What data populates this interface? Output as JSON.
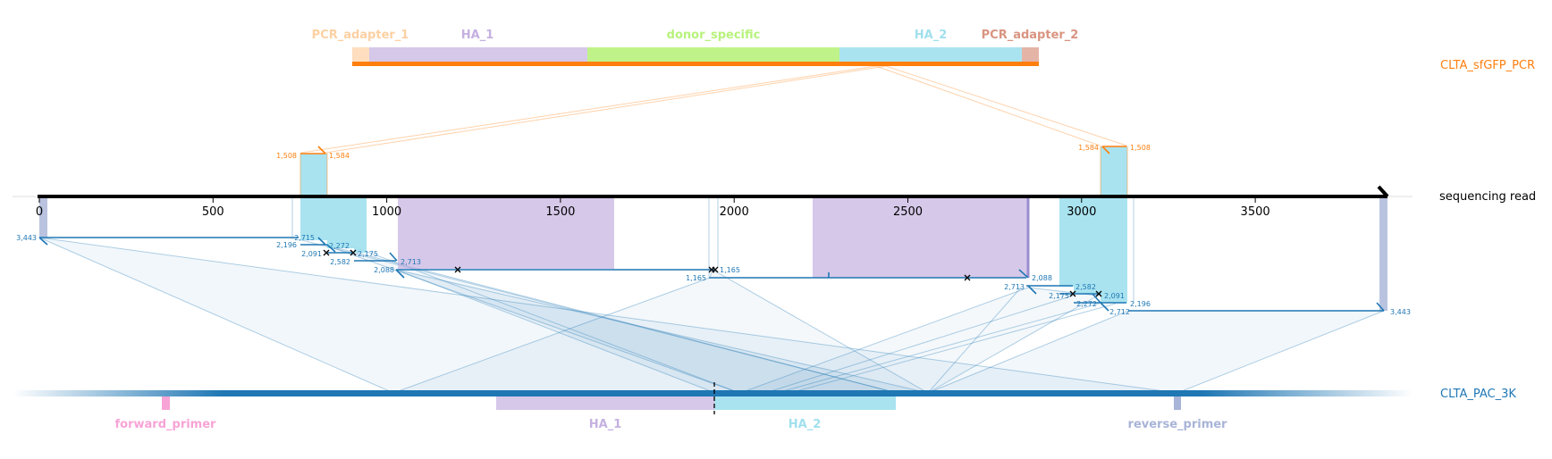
{
  "donor": {
    "name": "CLTA_sfGFP_PCR",
    "color": "#ff7f0e",
    "features": [
      {
        "name": "PCR_adapter_1",
        "color": "#fdd0a2"
      },
      {
        "name": "HA_1",
        "color": "#c5b0e0"
      },
      {
        "name": "donor_specific",
        "color": "#b8f27c"
      },
      {
        "name": "HA_2",
        "color": "#a0e0ee"
      },
      {
        "name": "PCR_adapter_2",
        "color": "#d99480"
      }
    ]
  },
  "read": {
    "name": "sequencing read",
    "axis_ticks": [
      "0",
      "500",
      "1000",
      "1500",
      "2000",
      "2500",
      "3000",
      "3500"
    ]
  },
  "reference": {
    "name": "CLTA_PAC_3K",
    "color": "#1f77b4",
    "features": [
      {
        "name": "forward_primer",
        "color": "#f7a3d6"
      },
      {
        "name": "HA_1",
        "color": "#c5b0e0"
      },
      {
        "name": "HA_2",
        "color": "#a0e0ee"
      },
      {
        "name": "reverse_primer",
        "color": "#a8b4d8"
      }
    ]
  },
  "alignment_labels": {
    "left_block": [
      "3,443",
      "2,715",
      "2,196",
      "2,272",
      "2,091",
      "2,175",
      "2,582",
      "2,713",
      "2,088"
    ],
    "middle": [
      "1,165",
      "1,165"
    ],
    "right_block": [
      "2,088",
      "2,713",
      "2,582",
      "2,175",
      "2,091",
      "2,272",
      "2,196",
      "2,712",
      "3,443"
    ],
    "donor_left": [
      "1,508",
      "1,584"
    ],
    "donor_right": [
      "1,584",
      "1,508"
    ]
  }
}
